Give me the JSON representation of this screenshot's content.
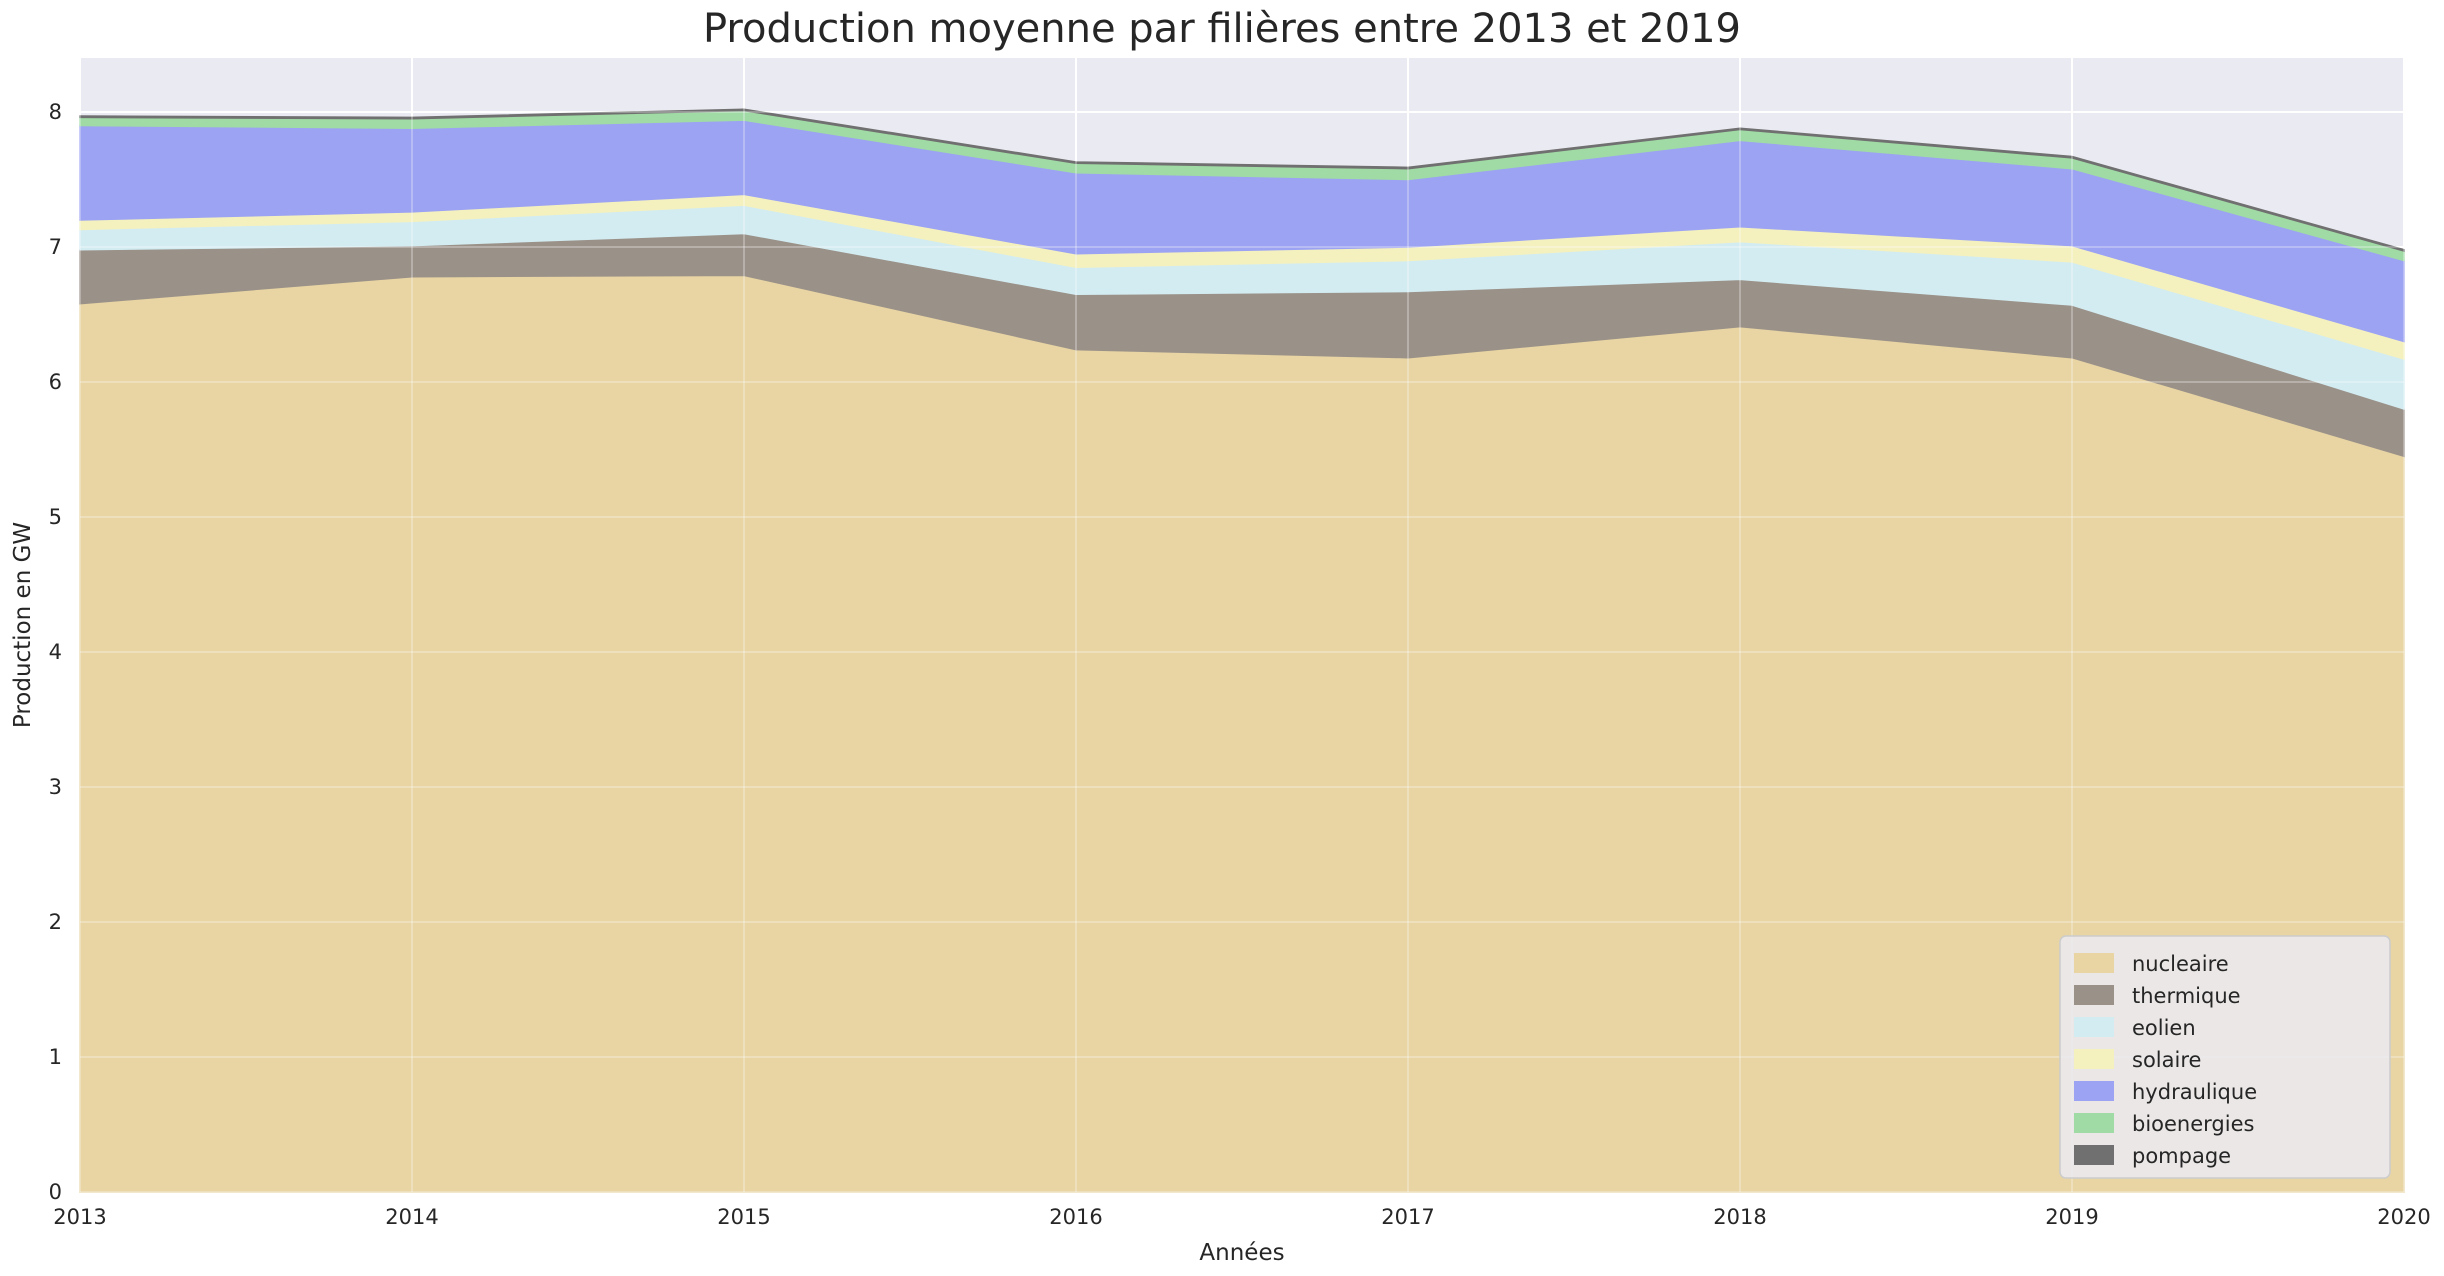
{
  "chart_data": {
    "type": "area",
    "stacked": true,
    "title": "Production moyenne par filières entre 2013 et 2019",
    "xlabel": "Années",
    "ylabel": "Production en GW",
    "x": [
      2013,
      2014,
      2015,
      2016,
      2017,
      2018,
      2019,
      2020
    ],
    "xlim": [
      2013,
      2020
    ],
    "ylim": [
      0,
      8.4
    ],
    "yticks": [
      0,
      1,
      2,
      3,
      4,
      5,
      6,
      7,
      8
    ],
    "grid": true,
    "legend_position": "lower-right",
    "colors": {
      "background": "#eaeaf2",
      "grid": "#ffffff"
    },
    "series": [
      {
        "name": "nucleaire",
        "color": "#e8d5a3",
        "values": [
          6.58,
          6.78,
          6.79,
          6.24,
          6.18,
          6.41,
          6.18,
          5.45
        ]
      },
      {
        "name": "thermique",
        "color": "#9a9189",
        "values": [
          0.4,
          0.23,
          0.31,
          0.41,
          0.49,
          0.35,
          0.39,
          0.35
        ]
      },
      {
        "name": "eolien",
        "color": "#d3ecf1",
        "values": [
          0.15,
          0.18,
          0.21,
          0.2,
          0.23,
          0.28,
          0.32,
          0.37
        ]
      },
      {
        "name": "solaire",
        "color": "#f4f1bf",
        "values": [
          0.07,
          0.07,
          0.08,
          0.1,
          0.1,
          0.11,
          0.12,
          0.13
        ]
      },
      {
        "name": "hydraulique",
        "color": "#9ca3f2",
        "values": [
          0.7,
          0.62,
          0.55,
          0.6,
          0.5,
          0.64,
          0.57,
          0.6
        ]
      },
      {
        "name": "bioenergies",
        "color": "#a0dba5",
        "values": [
          0.06,
          0.07,
          0.07,
          0.07,
          0.08,
          0.08,
          0.08,
          0.07
        ]
      },
      {
        "name": "pompage",
        "color": "#707070",
        "values": [
          0.01,
          0.01,
          0.01,
          0.01,
          0.01,
          0.01,
          0.01,
          0.01
        ]
      }
    ]
  }
}
